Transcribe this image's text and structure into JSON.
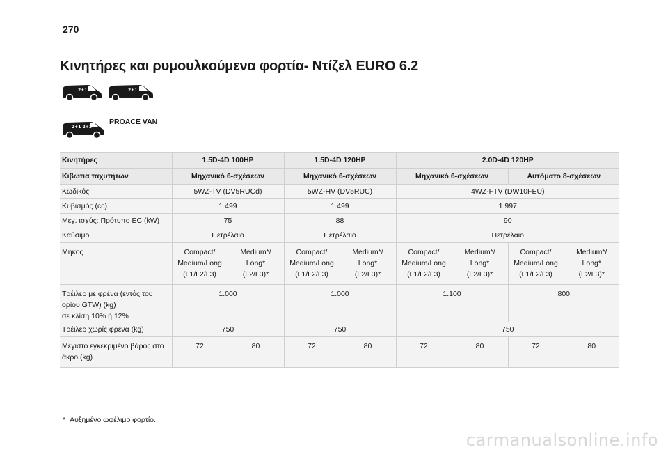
{
  "page_number": "270",
  "title": "Κινητήρες και ρυμουλκούμενα φορτία- Ντίζελ EURO 6.2",
  "model": "PROACE VAN",
  "icons": [
    "van-compact-icon",
    "van-medium-icon",
    "van-long-icon"
  ],
  "table": {
    "engines": {
      "label": "Κινητήρες",
      "e1": "1.5D-4D 100HP",
      "e2": "1.5D-4D 120HP",
      "e3": "2.0D-4D 120HP"
    },
    "gearbox": {
      "label": "Κιβώτια ταχυτήτων",
      "g1": "Μηχανικό 6-σχέσεων",
      "g2": "Μηχανικό 6-σχέσεων",
      "g3": "Μηχανικό 6-σχέσεων",
      "g4": "Αυτόματο 8-σχέσεων"
    },
    "code": {
      "label": "Κωδικός",
      "c1": "5WZ-TV (DV5RUCd)",
      "c2": "5WZ-HV (DV5RUC)",
      "c3": "4WZ-FTV (DW10FEU)"
    },
    "displacement": {
      "label": "Κυβισμός (cc)",
      "d1": "1.499",
      "d2": "1.499",
      "d3": "1.997"
    },
    "power": {
      "label": "Μεγ. ισχύς: Πρότυπο EC (kW)",
      "p1": "75",
      "p2": "88",
      "p3": "90"
    },
    "fuel": {
      "label": "Καύσιμο",
      "f1": "Πετρέλαιο",
      "f2": "Πετρέλαιο",
      "f3": "Πετρέλαιο"
    },
    "length": {
      "label": "Μήκος",
      "a_l1": "Compact/",
      "a_l2": "Medium/Long",
      "a_l3": "(L1/L2/L3)",
      "b_l1": "Medium*/",
      "b_l2": "Long*",
      "b_l3": "(L2/L3)*"
    },
    "braked": {
      "label_l1": "Τρέιλερ με φρένα (εντός του",
      "label_l2": "ορίου GTW) (kg)",
      "label_l3": "σε κλίση 10% ή 12%",
      "v1": "1.000",
      "v2": "1.000",
      "v3": "1.100",
      "v4": "800"
    },
    "unbraked": {
      "label": "Τρέιλερ χωρίς φρένα (kg)",
      "v1": "750",
      "v2": "750",
      "v3": "750"
    },
    "maxweight": {
      "label_l1": "Μέγιστο εγκεκριμένο βάρος στο",
      "label_l2": "άκρο (kg)",
      "v1": "72",
      "v2": "80",
      "v3": "72",
      "v4": "80",
      "v5": "72",
      "v6": "80",
      "v7": "72",
      "v8": "80"
    }
  },
  "footnote": {
    "star": "*",
    "text": "Αυξημένο ωφέλιμο φορτίο."
  },
  "watermark": "carmanualsonline.info"
}
